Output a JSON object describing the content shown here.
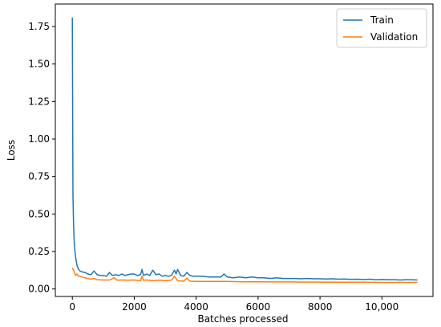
{
  "chart_data": {
    "type": "line",
    "title": "",
    "xlabel": "Batches processed",
    "ylabel": "Loss",
    "xlim": [
      -550,
      11650
    ],
    "ylim": [
      -0.05,
      1.9
    ],
    "xticks": [
      0,
      2000,
      4000,
      6000,
      8000,
      10000
    ],
    "xtick_labels": [
      "0",
      "2000",
      "4000",
      "6000",
      "8000",
      "10,000"
    ],
    "yticks": [
      0.0,
      0.25,
      0.5,
      0.75,
      1.0,
      1.25,
      1.5,
      1.75
    ],
    "ytick_labels": [
      "0.00",
      "0.25",
      "0.50",
      "0.75",
      "1.00",
      "1.25",
      "1.50",
      "1.75"
    ],
    "grid": false,
    "legend_position": "top-right",
    "series": [
      {
        "name": "Train",
        "color": "#1f77b4",
        "x": [
          0,
          20,
          40,
          60,
          80,
          100,
          130,
          160,
          200,
          250,
          300,
          400,
          500,
          600,
          700,
          800,
          900,
          1000,
          1100,
          1200,
          1300,
          1400,
          1500,
          1600,
          1700,
          1800,
          1900,
          2000,
          2100,
          2200,
          2250,
          2300,
          2400,
          2500,
          2600,
          2700,
          2800,
          2900,
          3000,
          3100,
          3200,
          3300,
          3350,
          3400,
          3500,
          3600,
          3700,
          3800,
          3900,
          4000,
          4200,
          4400,
          4600,
          4800,
          4900,
          5000,
          5200,
          5400,
          5600,
          5800,
          6000,
          6200,
          6400,
          6600,
          6800,
          7000,
          7200,
          7400,
          7600,
          7800,
          8000,
          8200,
          8400,
          8600,
          8800,
          9000,
          9200,
          9400,
          9600,
          9800,
          10000,
          10200,
          10400,
          10600,
          10800,
          11000,
          11150
        ],
        "y": [
          1.81,
          0.62,
          0.42,
          0.32,
          0.26,
          0.22,
          0.18,
          0.15,
          0.13,
          0.12,
          0.115,
          0.11,
          0.1,
          0.095,
          0.12,
          0.095,
          0.09,
          0.09,
          0.085,
          0.11,
          0.09,
          0.095,
          0.09,
          0.1,
          0.09,
          0.095,
          0.1,
          0.1,
          0.09,
          0.095,
          0.13,
          0.09,
          0.1,
          0.09,
          0.125,
          0.095,
          0.1,
          0.085,
          0.09,
          0.085,
          0.09,
          0.125,
          0.1,
          0.13,
          0.09,
          0.085,
          0.11,
          0.09,
          0.085,
          0.085,
          0.085,
          0.08,
          0.08,
          0.08,
          0.1,
          0.08,
          0.075,
          0.08,
          0.075,
          0.08,
          0.075,
          0.075,
          0.07,
          0.075,
          0.07,
          0.07,
          0.07,
          0.068,
          0.07,
          0.068,
          0.068,
          0.066,
          0.068,
          0.065,
          0.066,
          0.064,
          0.065,
          0.063,
          0.065,
          0.062,
          0.063,
          0.062,
          0.062,
          0.06,
          0.062,
          0.061,
          0.06
        ]
      },
      {
        "name": "Validation",
        "color": "#ff7f0e",
        "x": [
          0,
          50,
          100,
          150,
          200,
          300,
          400,
          500,
          600,
          700,
          800,
          1000,
          1200,
          1350,
          1450,
          1600,
          1800,
          2000,
          2200,
          2250,
          2300,
          2400,
          2600,
          2800,
          3000,
          3200,
          3300,
          3400,
          3600,
          3700,
          3800,
          4000,
          4500,
          5000,
          5500,
          6000,
          6500,
          7000,
          7500,
          8000,
          8500,
          9000,
          9500,
          10000,
          10500,
          11000,
          11150
        ],
        "y": [
          0.14,
          0.12,
          0.09,
          0.1,
          0.085,
          0.08,
          0.075,
          0.07,
          0.065,
          0.07,
          0.062,
          0.06,
          0.06,
          0.075,
          0.058,
          0.06,
          0.058,
          0.06,
          0.055,
          0.085,
          0.058,
          0.06,
          0.055,
          0.058,
          0.055,
          0.058,
          0.085,
          0.055,
          0.052,
          0.072,
          0.052,
          0.05,
          0.05,
          0.05,
          0.048,
          0.048,
          0.047,
          0.047,
          0.046,
          0.046,
          0.045,
          0.045,
          0.045,
          0.044,
          0.044,
          0.044,
          0.044
        ]
      }
    ]
  }
}
